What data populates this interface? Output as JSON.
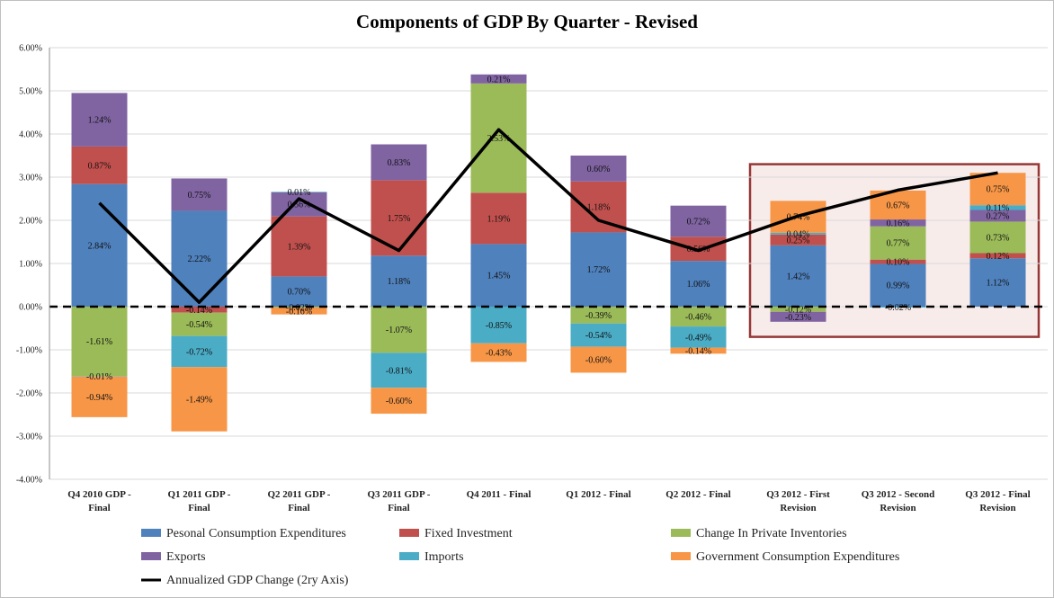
{
  "chart_data": {
    "type": "bar",
    "stacked": true,
    "title": "Components of GDP By Quarter - Revised",
    "ylim": [
      -4,
      6
    ],
    "ytick_step": 1,
    "ytick_labels": [
      "-4.00%",
      "-3.00%",
      "-2.00%",
      "-1.00%",
      "0.00%",
      "1.00%",
      "2.00%",
      "3.00%",
      "4.00%",
      "5.00%",
      "6.00%"
    ],
    "categories": [
      [
        "Q4 2010 GDP -",
        "Final"
      ],
      [
        "Q1 2011 GDP -",
        "Final"
      ],
      [
        "Q2 2011 GDP -",
        "Final"
      ],
      [
        "Q3 2011 GDP -",
        "Final"
      ],
      [
        "Q4 2011 - Final"
      ],
      [
        "Q1 2012 - Final"
      ],
      [
        "Q2 2012 - Final"
      ],
      [
        "Q3 2012 - First",
        "Revision"
      ],
      [
        "Q3 2012 - Second",
        "Revision"
      ],
      [
        "Q3 2012 - Final",
        "Revision"
      ]
    ],
    "series": [
      {
        "name": "Pesonal Consumption Expenditures",
        "color": "#4F81BD",
        "values": [
          2.84,
          2.22,
          0.7,
          1.18,
          1.45,
          1.72,
          1.06,
          1.42,
          0.99,
          1.12
        ],
        "labels": [
          "2.84%",
          "2.22%",
          "0.70%",
          "1.18%",
          "1.45%",
          "1.72%",
          "1.06%",
          "1.42%",
          "0.99%",
          "1.12%"
        ]
      },
      {
        "name": "Fixed Investment",
        "color": "#C0504D",
        "values": [
          0.87,
          -0.14,
          1.39,
          1.75,
          1.19,
          1.18,
          0.56,
          0.25,
          0.1,
          0.12
        ],
        "labels": [
          "0.87%",
          "-0.14%",
          "1.39%",
          "1.75%",
          "1.19%",
          "1.18%",
          "0.56%",
          "0.25%",
          "0.10%",
          "0.12%"
        ]
      },
      {
        "name": "Change In Private Inventories",
        "color": "#9BBB59",
        "values": [
          -1.61,
          -0.54,
          -0.02,
          -1.07,
          2.53,
          -0.39,
          -0.46,
          -0.12,
          0.77,
          0.73
        ],
        "labels": [
          "-1.61%",
          "-0.54%",
          "-0.02%",
          "-1.07%",
          "2.53%",
          "-0.39%",
          "-0.46%",
          "-0.12%",
          "0.77%",
          "0.73%"
        ]
      },
      {
        "name": "Exports",
        "color": "#8064A2",
        "values": [
          1.24,
          0.75,
          0.56,
          0.83,
          0.21,
          0.6,
          0.72,
          -0.23,
          0.16,
          0.27
        ],
        "labels": [
          "1.24%",
          "0.75%",
          "0.56%",
          "0.83%",
          "0.21%",
          "0.60%",
          "0.72%",
          "-0.23%",
          "0.16%",
          "0.27%"
        ]
      },
      {
        "name": "Imports",
        "color": "#4BACC6",
        "values": [
          -0.01,
          -0.72,
          0.01,
          -0.81,
          -0.85,
          -0.54,
          -0.49,
          0.04,
          -0.02,
          0.11
        ],
        "labels": [
          "-0.01%",
          "-0.72%",
          "0.01%",
          "-0.81%",
          "-0.85%",
          "-0.54%",
          "-0.49%",
          "0.04%",
          "-0.02%",
          "0.11%"
        ]
      },
      {
        "name": "Government Consumption Expenditures",
        "color": "#F79646",
        "values": [
          -0.94,
          -1.49,
          -0.16,
          -0.6,
          -0.43,
          -0.6,
          -0.14,
          0.74,
          0.67,
          0.75
        ],
        "labels": [
          "-0.94%",
          "-1.49%",
          "-0.16%",
          "-0.60%",
          "-0.43%",
          "-0.60%",
          "-0.14%",
          "0.74%",
          "0.67%",
          "0.75%"
        ]
      }
    ],
    "line": {
      "name": "Annualized GDP Change (2ry Axis)",
      "color": "#000000",
      "values": [
        2.4,
        0.1,
        2.5,
        1.3,
        4.1,
        2.0,
        1.3,
        2.1,
        2.7,
        3.1
      ]
    },
    "zero_line": "dashed",
    "highlight": {
      "from_category": 7,
      "to_category": 9,
      "y_range": [
        -0.7,
        3.3
      ]
    },
    "legend": "bottom"
  }
}
